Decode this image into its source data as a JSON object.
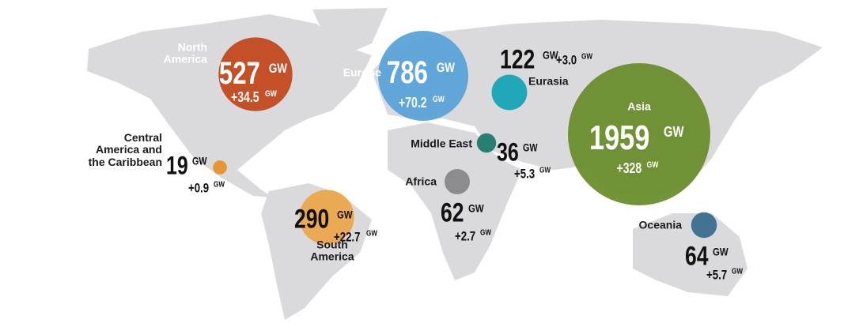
{
  "unit": "GW",
  "regions": [
    {
      "name": "North\nAmerica",
      "capacity": 527,
      "growth": "+34.5",
      "color": "#c3491d"
    },
    {
      "name": "Central\nAmerica and\nthe Caribbean",
      "capacity": 19,
      "growth": "+0.9",
      "color": "#e8922a"
    },
    {
      "name": "South\nAmerica",
      "capacity": 290,
      "growth": "+22.7",
      "color": "#eba84c"
    },
    {
      "name": "Europe",
      "capacity": 786,
      "growth": "+70.2",
      "color": "#5aa3d8"
    },
    {
      "name": "Eurasia",
      "capacity": 122,
      "growth": "+3.0",
      "color": "#16a5b6"
    },
    {
      "name": "Middle East",
      "capacity": 36,
      "growth": "+5.3",
      "color": "#1c7a6c"
    },
    {
      "name": "Africa",
      "capacity": 62,
      "growth": "+2.7",
      "color": "#88888b"
    },
    {
      "name": "Asia",
      "capacity": 1959,
      "growth": "+328",
      "color": "#6b8d2c"
    },
    {
      "name": "Oceania",
      "capacity": 64,
      "growth": "+5.7",
      "color": "#3b6e8d"
    }
  ]
}
